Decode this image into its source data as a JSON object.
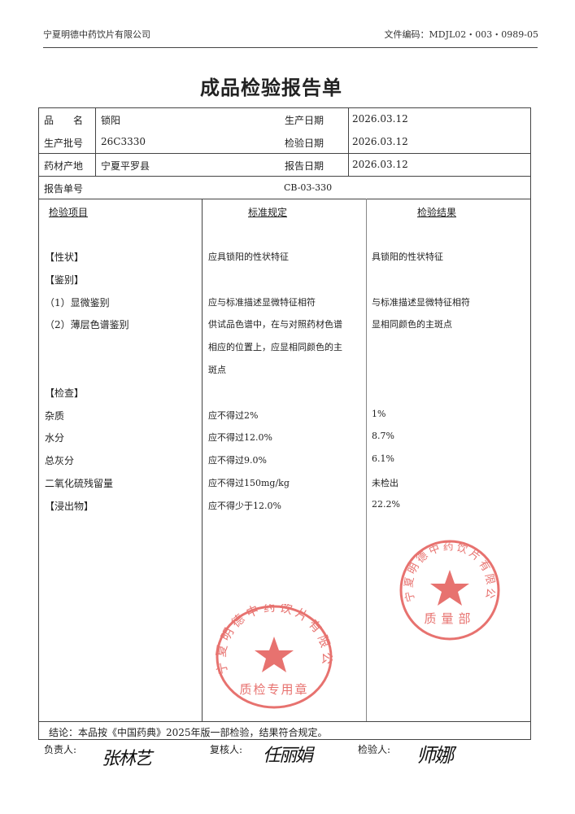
{
  "header": {
    "company": "宁夏明德中药饮片有限公司",
    "doc_code": "文件编码：MDJL02・003・0989-05"
  },
  "title": "成品检验报告单",
  "info": {
    "name_label": "品　　名",
    "name": "锁阳",
    "batch_label": "生产批号",
    "batch": "26C3330",
    "origin_label": "药材产地",
    "origin": "宁夏平罗县",
    "prod_date_label": "生产日期",
    "prod_date": "2026.03.12",
    "test_date_label": "检验日期",
    "test_date": "2026.03.12",
    "report_date_label": "报告日期",
    "report_date": "2026.03.12",
    "report_no_label": "报告单号",
    "report_no": "CB-03-330"
  },
  "columns": [
    "检验项目",
    "标准规定",
    "检验结果"
  ],
  "rows": [
    {
      "item": "【性状】",
      "standard": "应具锁阳的性状特征",
      "result": "具锁阳的性状特征"
    },
    {
      "item": "【鉴别】",
      "standard": "",
      "result": ""
    },
    {
      "item": "（1）显微鉴别",
      "standard": "应与标准描述显微特征相符",
      "result": "与标准描述显微特征相符"
    },
    {
      "item": "（2）薄层色谱鉴别",
      "standard": "供试品色谱中，在与对照药材色谱",
      "result": "显相同颜色的主斑点"
    },
    {
      "item": "",
      "standard": "相应的位置上，应显相同颜色的主",
      "result": ""
    },
    {
      "item": "",
      "standard": "斑点",
      "result": ""
    },
    {
      "item": "【检查】",
      "standard": "",
      "result": ""
    },
    {
      "item": "杂质",
      "standard": "应不得过2%",
      "result": "1%"
    },
    {
      "item": "水分",
      "standard": "应不得过12.0%",
      "result": "8.7%"
    },
    {
      "item": "总灰分",
      "standard": "应不得过9.0%",
      "result": "6.1%"
    },
    {
      "item": "二氧化硫残留量",
      "standard": "应不得过150mg/kg",
      "result": "未检出"
    },
    {
      "item": "【浸出物】",
      "standard": "应不得少于12.0%",
      "result": "22.2%"
    }
  ],
  "conclusion": "结论：本品按《中国药典》2025年版一部检验，结果符合规定。",
  "signatures": {
    "responsible_label": "负责人:",
    "responsible": "张林艺",
    "reviewer_label": "复核人:",
    "reviewer": "任丽娟",
    "inspector_label": "检验人:",
    "inspector": "师娜"
  },
  "stamps": {
    "top": {
      "ring": "宁夏明德中药饮片有限公司",
      "center": "质量部"
    },
    "bottom": {
      "ring": "宁夏明德中药饮片有限公司",
      "center": "质检专用章"
    },
    "color": "#e0433f"
  }
}
